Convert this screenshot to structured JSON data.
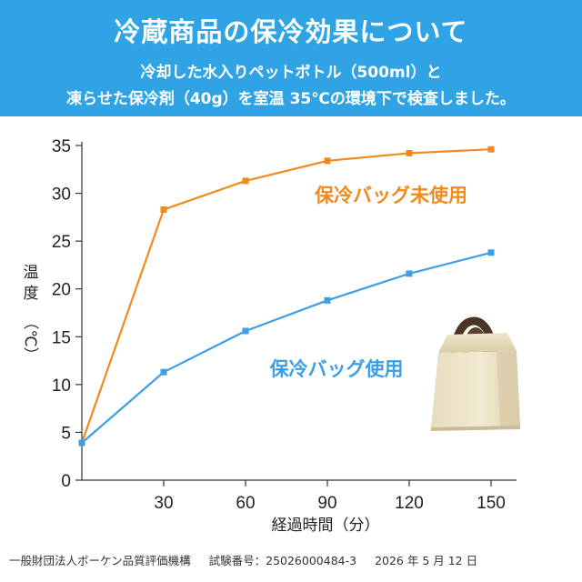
{
  "header": {
    "title": "冷蔵商品の保冷効果について",
    "subtitle_line1": "冷却した水入りペットボトル（500ml）と",
    "subtitle_line2": "凍らせた保冷剤（40g）を室温 35℃の環境下で検査しました。"
  },
  "footer": {
    "organization": "一般財団法人ボーケン品質評価機構",
    "test_number": "試験番号：25026000484-3",
    "date": "2026 年 5 月 12 日"
  },
  "bag_illustration": {
    "icon": "insulated-bag-icon"
  },
  "chart_data": {
    "type": "line",
    "xlabel": "経過時間（分）",
    "ylabel": [
      "温",
      "度",
      "（℃）"
    ],
    "xlim": [
      0,
      155
    ],
    "ylim": [
      0,
      35
    ],
    "x_ticks": [
      30,
      60,
      90,
      120,
      150
    ],
    "y_ticks": [
      0,
      5,
      10,
      15,
      20,
      25,
      30,
      35
    ],
    "grid": false,
    "x": [
      0,
      30,
      60,
      90,
      120,
      150
    ],
    "series": [
      {
        "name": "保冷バッグ未使用",
        "color": "#f08a1e",
        "values": [
          3.9,
          28.3,
          31.3,
          33.4,
          34.2,
          34.6
        ]
      },
      {
        "name": "保冷バッグ使用",
        "color": "#3b9ee6",
        "values": [
          3.9,
          11.3,
          15.6,
          18.8,
          21.6,
          23.8
        ]
      }
    ]
  }
}
